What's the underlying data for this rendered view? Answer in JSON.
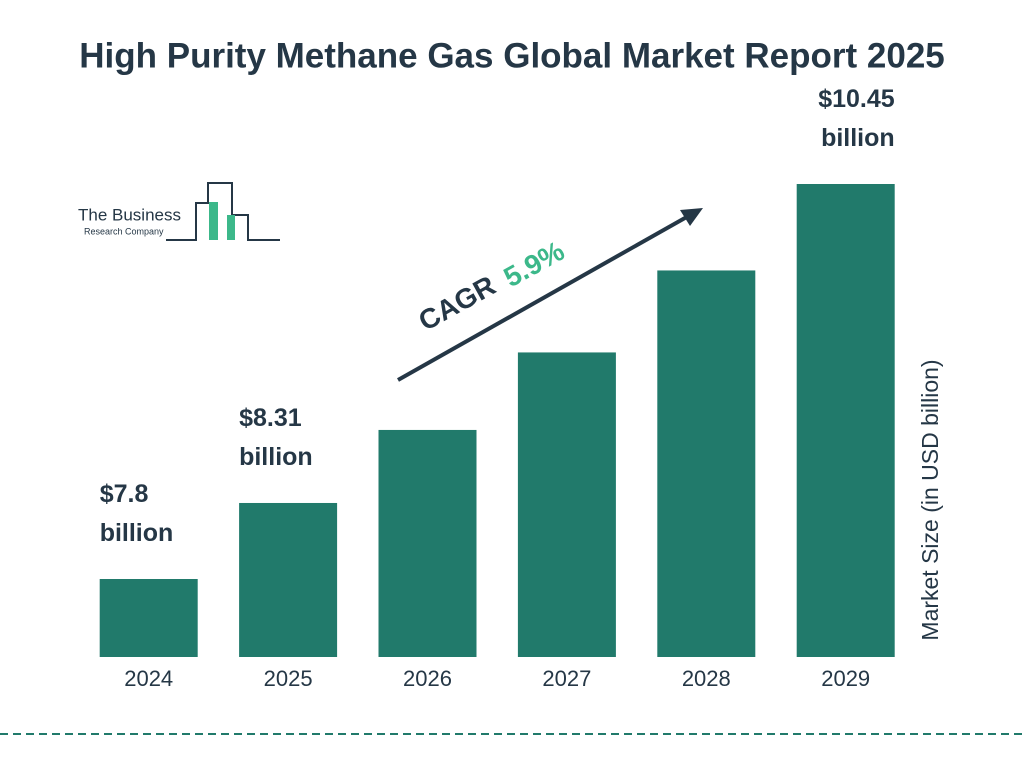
{
  "chart_data": {
    "type": "bar",
    "title": "High Purity Methane Gas Global Market Report 2025",
    "y_label": "Market Size (in USD billion)",
    "categories": [
      "2024",
      "2025",
      "2026",
      "2027",
      "2028",
      "2029"
    ],
    "values": [
      7.8,
      8.31,
      8.8,
      9.32,
      9.87,
      10.45
    ],
    "value_labels": [
      "$7.8 billion",
      "$8.31 billion",
      null,
      null,
      null,
      "$10.45 billion"
    ],
    "color": "#217a6b",
    "annotation": {
      "label": "CAGR",
      "value": "5.9%",
      "value_color": "#3cb88a"
    },
    "logo": {
      "line1": "The Business",
      "line2": "Research Company"
    }
  }
}
